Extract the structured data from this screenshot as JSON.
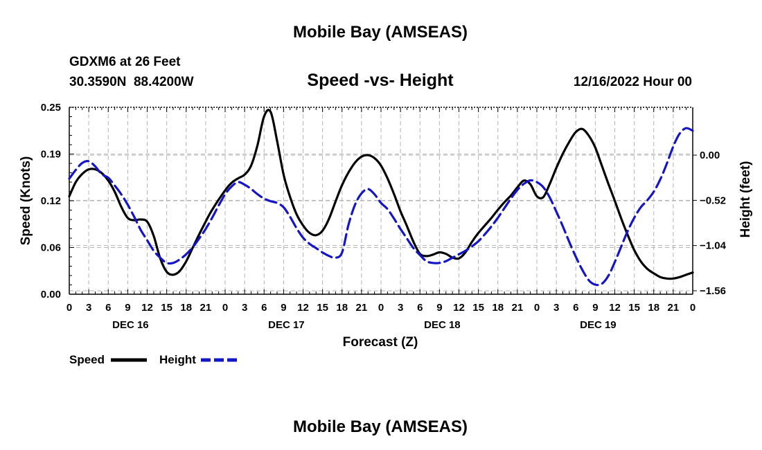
{
  "page_title": "Mobile Bay (AMSEAS)",
  "footer_title": "Mobile Bay (AMSEAS)",
  "station": {
    "line1": "GDXM6 at 26 Feet",
    "line2": "30.3590N  88.4200W"
  },
  "run_time": "12/16/2022 Hour 00",
  "chart_data": {
    "type": "line",
    "title": "Speed -vs- Height",
    "xlabel": "Forecast (Z)",
    "ylabel_left": "Speed (Knots)",
    "ylabel_right": "Height (feet)",
    "x_range_hours": [
      0,
      96
    ],
    "x_tick_step_hours": 3,
    "x_tick_labels": [
      "0",
      "3",
      "6",
      "9",
      "12",
      "15",
      "18",
      "21",
      "0",
      "3",
      "6",
      "9",
      "12",
      "15",
      "18",
      "21",
      "0",
      "3",
      "6",
      "9",
      "12",
      "15",
      "18",
      "21",
      "0",
      "3",
      "6",
      "9",
      "12",
      "15",
      "18",
      "21",
      "0"
    ],
    "day_labels": [
      {
        "label": "DEC 16",
        "hour": 9
      },
      {
        "label": "DEC 17",
        "hour": 33
      },
      {
        "label": "DEC 18",
        "hour": 57
      },
      {
        "label": "DEC 19",
        "hour": 81
      }
    ],
    "ylim_left": [
      0,
      0.25
    ],
    "yticks_left": [
      "0.00",
      "0.06",
      "0.12",
      "0.19",
      "0.25"
    ],
    "yticks_left_values": [
      0,
      0.0625,
      0.125,
      0.1875,
      0.25
    ],
    "ylim_right": [
      -1.6,
      0.55
    ],
    "yticks_right": [
      "−1.56",
      "−1.04",
      "−0.52",
      "0.00"
    ],
    "yticks_right_values": [
      -1.56,
      -1.04,
      -0.52,
      0.0
    ],
    "grid": true,
    "series": [
      {
        "name": "Speed",
        "axis": "left",
        "color": "#000000",
        "style": "solid",
        "points": [
          [
            0,
            0.131
          ],
          [
            1,
            0.15
          ],
          [
            2,
            0.161
          ],
          [
            3,
            0.167
          ],
          [
            4,
            0.167
          ],
          [
            5,
            0.162
          ],
          [
            6,
            0.152
          ],
          [
            7,
            0.137
          ],
          [
            8,
            0.117
          ],
          [
            9,
            0.102
          ],
          [
            10,
            0.099
          ],
          [
            11,
            0.1
          ],
          [
            12,
            0.097
          ],
          [
            13,
            0.078
          ],
          [
            14,
            0.048
          ],
          [
            15,
            0.03
          ],
          [
            16,
            0.026
          ],
          [
            17,
            0.031
          ],
          [
            18,
            0.044
          ],
          [
            19,
            0.062
          ],
          [
            20,
            0.08
          ],
          [
            21,
            0.097
          ],
          [
            22,
            0.113
          ],
          [
            24,
            0.139
          ],
          [
            25,
            0.149
          ],
          [
            26,
            0.155
          ],
          [
            27,
            0.16
          ],
          [
            28,
            0.172
          ],
          [
            29,
            0.2
          ],
          [
            30,
            0.238
          ],
          [
            31,
            0.244
          ],
          [
            32,
            0.205
          ],
          [
            33,
            0.16
          ],
          [
            34,
            0.13
          ],
          [
            35,
            0.107
          ],
          [
            36,
            0.092
          ],
          [
            37,
            0.082
          ],
          [
            38,
            0.079
          ],
          [
            39,
            0.085
          ],
          [
            40,
            0.101
          ],
          [
            41,
            0.124
          ],
          [
            42,
            0.146
          ],
          [
            43,
            0.163
          ],
          [
            44,
            0.176
          ],
          [
            45,
            0.184
          ],
          [
            46,
            0.186
          ],
          [
            47,
            0.182
          ],
          [
            48,
            0.172
          ],
          [
            49,
            0.155
          ],
          [
            50,
            0.134
          ],
          [
            51,
            0.111
          ],
          [
            52,
            0.091
          ],
          [
            53,
            0.07
          ],
          [
            54,
            0.054
          ],
          [
            55,
            0.051
          ],
          [
            56,
            0.053
          ],
          [
            57,
            0.056
          ],
          [
            58,
            0.054
          ],
          [
            59,
            0.049
          ],
          [
            60,
            0.048
          ],
          [
            61,
            0.056
          ],
          [
            62,
            0.07
          ],
          [
            63,
            0.082
          ],
          [
            64,
            0.092
          ],
          [
            65,
            0.102
          ],
          [
            66,
            0.113
          ],
          [
            67,
            0.123
          ],
          [
            68,
            0.132
          ],
          [
            69,
            0.143
          ],
          [
            70,
            0.152
          ],
          [
            71,
            0.147
          ],
          [
            72,
            0.131
          ],
          [
            73,
            0.13
          ],
          [
            74,
            0.148
          ],
          [
            75,
            0.169
          ],
          [
            76,
            0.188
          ],
          [
            77,
            0.204
          ],
          [
            78,
            0.217
          ],
          [
            79,
            0.221
          ],
          [
            80,
            0.212
          ],
          [
            81,
            0.196
          ],
          [
            82,
            0.172
          ],
          [
            83,
            0.148
          ],
          [
            84,
            0.125
          ],
          [
            85,
            0.101
          ],
          [
            86,
            0.079
          ],
          [
            87,
            0.059
          ],
          [
            88,
            0.044
          ],
          [
            89,
            0.034
          ],
          [
            90,
            0.028
          ],
          [
            91,
            0.023
          ],
          [
            92,
            0.021
          ],
          [
            93,
            0.021
          ],
          [
            94,
            0.023
          ],
          [
            95,
            0.026
          ],
          [
            96,
            0.029
          ]
        ]
      },
      {
        "name": "Height",
        "axis": "right",
        "color": "#1414c8",
        "style": "dashed",
        "points": [
          [
            0,
            -0.27
          ],
          [
            1,
            -0.17
          ],
          [
            2,
            -0.09
          ],
          [
            3,
            -0.07
          ],
          [
            4,
            -0.13
          ],
          [
            5,
            -0.22
          ],
          [
            6,
            -0.26
          ],
          [
            7,
            -0.35
          ],
          [
            8,
            -0.45
          ],
          [
            9,
            -0.57
          ],
          [
            10,
            -0.71
          ],
          [
            11,
            -0.86
          ],
          [
            12,
            -0.98
          ],
          [
            13,
            -1.1
          ],
          [
            14,
            -1.18
          ],
          [
            15,
            -1.24
          ],
          [
            16,
            -1.24
          ],
          [
            17,
            -1.2
          ],
          [
            18,
            -1.14
          ],
          [
            19,
            -1.06
          ],
          [
            20,
            -0.96
          ],
          [
            21,
            -0.85
          ],
          [
            22,
            -0.72
          ],
          [
            23,
            -0.58
          ],
          [
            24,
            -0.45
          ],
          [
            25,
            -0.36
          ],
          [
            26,
            -0.31
          ],
          [
            27,
            -0.34
          ],
          [
            28,
            -0.39
          ],
          [
            29,
            -0.45
          ],
          [
            30,
            -0.5
          ],
          [
            31,
            -0.53
          ],
          [
            32,
            -0.55
          ],
          [
            33,
            -0.6
          ],
          [
            34,
            -0.71
          ],
          [
            35,
            -0.84
          ],
          [
            36,
            -0.95
          ],
          [
            37,
            -1.02
          ],
          [
            38,
            -1.07
          ],
          [
            39,
            -1.12
          ],
          [
            40,
            -1.16
          ],
          [
            41,
            -1.18
          ],
          [
            42,
            -1.12
          ],
          [
            43,
            -0.8
          ],
          [
            44,
            -0.57
          ],
          [
            45,
            -0.44
          ],
          [
            46,
            -0.39
          ],
          [
            47,
            -0.45
          ],
          [
            48,
            -0.55
          ],
          [
            49,
            -0.62
          ],
          [
            50,
            -0.73
          ],
          [
            51,
            -0.85
          ],
          [
            52,
            -0.96
          ],
          [
            53,
            -1.07
          ],
          [
            54,
            -1.15
          ],
          [
            55,
            -1.22
          ],
          [
            56,
            -1.24
          ],
          [
            57,
            -1.24
          ],
          [
            58,
            -1.22
          ],
          [
            59,
            -1.18
          ],
          [
            60,
            -1.14
          ],
          [
            61,
            -1.1
          ],
          [
            62,
            -1.05
          ],
          [
            63,
            -0.99
          ],
          [
            64,
            -0.91
          ],
          [
            65,
            -0.82
          ],
          [
            66,
            -0.72
          ],
          [
            67,
            -0.61
          ],
          [
            68,
            -0.5
          ],
          [
            69,
            -0.4
          ],
          [
            70,
            -0.33
          ],
          [
            71,
            -0.29
          ],
          [
            72,
            -0.31
          ],
          [
            73,
            -0.37
          ],
          [
            74,
            -0.49
          ],
          [
            75,
            -0.65
          ],
          [
            76,
            -0.82
          ],
          [
            77,
            -1.0
          ],
          [
            78,
            -1.17
          ],
          [
            79,
            -1.32
          ],
          [
            80,
            -1.44
          ],
          [
            81,
            -1.49
          ],
          [
            82,
            -1.48
          ],
          [
            83,
            -1.39
          ],
          [
            84,
            -1.23
          ],
          [
            85,
            -1.05
          ],
          [
            86,
            -0.87
          ],
          [
            87,
            -0.72
          ],
          [
            88,
            -0.6
          ],
          [
            89,
            -0.52
          ],
          [
            90,
            -0.42
          ],
          [
            91,
            -0.28
          ],
          [
            92,
            -0.1
          ],
          [
            93,
            0.1
          ],
          [
            94,
            0.25
          ],
          [
            95,
            0.31
          ],
          [
            96,
            0.28
          ]
        ]
      }
    ]
  }
}
